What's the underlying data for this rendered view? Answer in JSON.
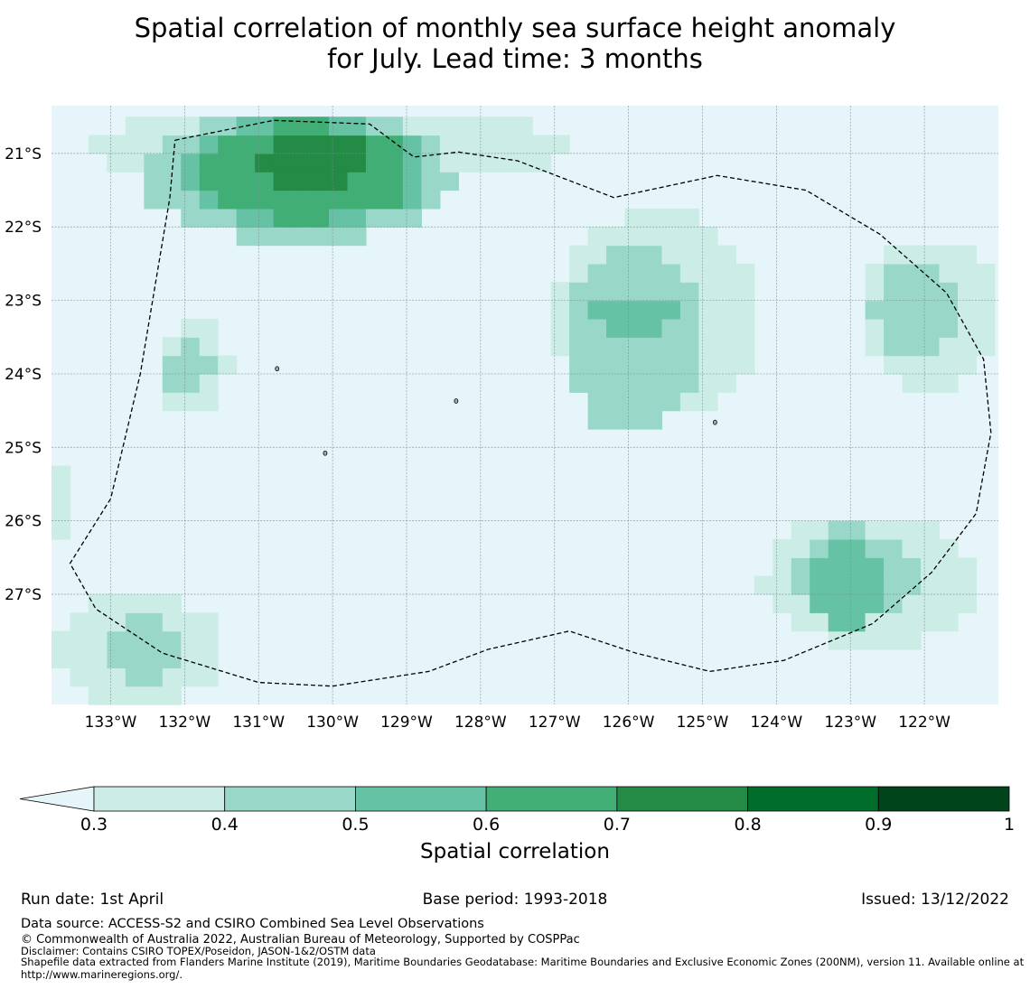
{
  "title": {
    "line1": "Spatial correlation of monthly sea surface height anomaly",
    "line2": "for July. Lead time: 3 months"
  },
  "map": {
    "lon_range": [
      -133.8,
      -121.0
    ],
    "lat_range": [
      -28.5,
      -20.35
    ],
    "grid_step_deg": 0.25,
    "lat_ticks": [
      {
        "value": -21,
        "label": "21°S"
      },
      {
        "value": -22,
        "label": "22°S"
      },
      {
        "value": -23,
        "label": "23°S"
      },
      {
        "value": -24,
        "label": "24°S"
      },
      {
        "value": -25,
        "label": "25°S"
      },
      {
        "value": -26,
        "label": "26°S"
      },
      {
        "value": -27,
        "label": "27°S"
      }
    ],
    "lon_ticks": [
      {
        "value": -133,
        "label": "133°W"
      },
      {
        "value": -132,
        "label": "132°W"
      },
      {
        "value": -131,
        "label": "131°W"
      },
      {
        "value": -130,
        "label": "130°W"
      },
      {
        "value": -129,
        "label": "129°W"
      },
      {
        "value": -128,
        "label": "128°W"
      },
      {
        "value": -127,
        "label": "127°W"
      },
      {
        "value": -126,
        "label": "126°W"
      },
      {
        "value": -125,
        "label": "125°W"
      },
      {
        "value": -124,
        "label": "124°W"
      },
      {
        "value": -123,
        "label": "123°W"
      },
      {
        "value": -122,
        "label": "122°W"
      }
    ],
    "correlation_regions": [
      {
        "level": 0.3,
        "lon": [
          -133.3,
          -126.8
        ],
        "lat": [
          -21.4,
          -20.4
        ]
      },
      {
        "level": 0.4,
        "lon": [
          -132.6,
          -128.4
        ],
        "lat": [
          -22.2,
          -20.4
        ]
      },
      {
        "level": 0.5,
        "lon": [
          -132.0,
          -128.7
        ],
        "lat": [
          -22.0,
          -20.5
        ]
      },
      {
        "level": 0.6,
        "lon": [
          -131.8,
          -128.9
        ],
        "lat": [
          -21.9,
          -20.6
        ]
      },
      {
        "level": 0.7,
        "lon": [
          -131.0,
          -129.5
        ],
        "lat": [
          -21.5,
          -20.7
        ]
      },
      {
        "level": 0.3,
        "lon": [
          -127.0,
          -124.2
        ],
        "lat": [
          -24.6,
          -21.8
        ]
      },
      {
        "level": 0.4,
        "lon": [
          -126.9,
          -125.0
        ],
        "lat": [
          -24.8,
          -22.3
        ]
      },
      {
        "level": 0.5,
        "lon": [
          -126.5,
          -125.4
        ],
        "lat": [
          -23.5,
          -22.9
        ]
      },
      {
        "level": 0.3,
        "lon": [
          -122.9,
          -121.0
        ],
        "lat": [
          -24.2,
          -22.2
        ]
      },
      {
        "level": 0.4,
        "lon": [
          -122.7,
          -121.5
        ],
        "lat": [
          -23.8,
          -22.5
        ]
      },
      {
        "level": 0.3,
        "lon": [
          -132.4,
          -131.4
        ],
        "lat": [
          -24.5,
          -23.3
        ]
      },
      {
        "level": 0.4,
        "lon": [
          -132.3,
          -131.6
        ],
        "lat": [
          -24.2,
          -23.6
        ]
      },
      {
        "level": 0.3,
        "lon": [
          -124.2,
          -121.3
        ],
        "lat": [
          -27.7,
          -25.9
        ]
      },
      {
        "level": 0.4,
        "lon": [
          -123.8,
          -122.1
        ],
        "lat": [
          -27.4,
          -26.1
        ]
      },
      {
        "level": 0.5,
        "lon": [
          -123.6,
          -122.5
        ],
        "lat": [
          -27.4,
          -26.3
        ]
      },
      {
        "level": 0.3,
        "lon": [
          -133.8,
          -131.5
        ],
        "lat": [
          -28.5,
          -27.0
        ]
      },
      {
        "level": 0.4,
        "lon": [
          -133.0,
          -132.0
        ],
        "lat": [
          -28.2,
          -27.3
        ]
      },
      {
        "level": 0.3,
        "lon": [
          -133.8,
          -133.5
        ],
        "lat": [
          -26.2,
          -25.3
        ]
      }
    ],
    "boundary_points": [
      [
        -132.13,
        -20.82
      ],
      [
        -130.8,
        -20.55
      ],
      [
        -129.5,
        -20.6
      ],
      [
        -128.9,
        -21.05
      ],
      [
        -128.3,
        -20.98
      ],
      [
        -127.5,
        -21.1
      ],
      [
        -126.2,
        -21.6
      ],
      [
        -124.8,
        -21.3
      ],
      [
        -123.6,
        -21.5
      ],
      [
        -122.6,
        -22.1
      ],
      [
        -121.7,
        -22.9
      ],
      [
        -121.2,
        -23.8
      ],
      [
        -121.1,
        -24.8
      ],
      [
        -121.3,
        -25.9
      ],
      [
        -121.9,
        -26.7
      ],
      [
        -122.7,
        -27.4
      ],
      [
        -123.9,
        -27.9
      ],
      [
        -124.9,
        -28.05
      ],
      [
        -125.9,
        -27.8
      ],
      [
        -126.8,
        -27.5
      ],
      [
        -127.9,
        -27.75
      ],
      [
        -128.7,
        -28.05
      ],
      [
        -130.0,
        -28.25
      ],
      [
        -131.0,
        -28.2
      ],
      [
        -132.3,
        -27.8
      ],
      [
        -133.2,
        -27.2
      ],
      [
        -133.55,
        -26.58
      ],
      [
        -133.0,
        -25.7
      ],
      [
        -132.6,
        -24.0
      ],
      [
        -132.2,
        -21.6
      ],
      [
        -132.13,
        -20.82
      ]
    ],
    "islands": [
      [
        -128.33,
        -24.37
      ],
      [
        -130.1,
        -25.08
      ],
      [
        -124.83,
        -24.66
      ],
      [
        -130.75,
        -23.93
      ]
    ]
  },
  "colorbar": {
    "title": "Spatial correlation",
    "levels": [
      0.3,
      0.4,
      0.5,
      0.6,
      0.7,
      0.8,
      0.9,
      1.0
    ],
    "tick_labels": [
      "0.3",
      "0.4",
      "0.5",
      "0.6",
      "0.7",
      "0.8",
      "0.9",
      "1"
    ],
    "colors": {
      "below": "#e5f5f9",
      "0.3": "#ccece6",
      "0.4": "#99d8c9",
      "0.5": "#66c2a4",
      "0.6": "#41ae76",
      "0.7": "#238b45",
      "0.8": "#006d2c",
      "0.9": "#00441b"
    }
  },
  "footer": {
    "run_date": "Run date: 1st April",
    "base_period": "Base period: 1993-2018",
    "issued": "Issued: 13/12/2022",
    "data_source": "Data source: ACCESS-S2 and CSIRO Combined Sea Level Observations",
    "copyright": "© Commonwealth of Australia 2022, Australian Bureau of Meteorology, Supported by COSPPac",
    "disclaimer": "Disclaimer: Contains CSIRO TOPEX/Poseidon, JASON-1&2/OSTM data",
    "shapefile": "Shapefile data extracted from Flanders Marine Institute (2019), Maritime Boundaries Geodatabase: Maritime Boundaries and Exclusive Economic Zones (200NM), version 11. Available online at http://www.marineregions.org/."
  }
}
